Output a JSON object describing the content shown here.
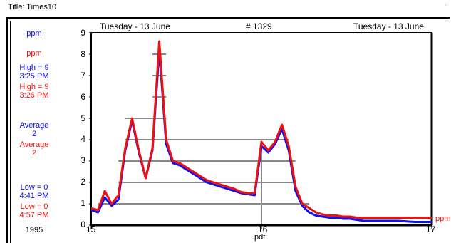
{
  "title": "Title:  Times10",
  "header": {
    "left_date": "Tuesday - 13 June",
    "record": "#  1329",
    "right_date": "Tuesday - 13 June"
  },
  "legend": {
    "series1_unit": "ppm",
    "series2_unit": "ppm",
    "high1": "High = 9",
    "high1_time": "3:25  PM",
    "high2": "High = 9",
    "high2_time": "3:26  PM",
    "avg1_label": "Average",
    "avg1_value": "2",
    "avg2_label": "Average",
    "avg2_value": "2",
    "low1": "Low = 0",
    "low1_time": "4:41  PM",
    "low2": "Low = 0",
    "low2_time": "4:57  PM",
    "year": "1995"
  },
  "right_unit": "ppm",
  "colors": {
    "series1": "#1111ee",
    "series2": "#ee1111",
    "grid": "#888888"
  },
  "chart_data": {
    "type": "line",
    "x_ticks": [
      "15",
      "16",
      "17"
    ],
    "xlabel": "pdt",
    "y_ticks": [
      "0",
      "1",
      "2",
      "3",
      "4",
      "5",
      "6",
      "7",
      "8",
      "9"
    ],
    "ylim": [
      0,
      9
    ],
    "xlim": [
      15,
      17
    ],
    "series": [
      {
        "color": "#1111ee",
        "x": [
          15.0,
          15.04,
          15.08,
          15.12,
          15.16,
          15.2,
          15.24,
          15.28,
          15.32,
          15.36,
          15.4,
          15.44,
          15.48,
          15.52,
          15.56,
          15.6,
          15.64,
          15.68,
          15.72,
          15.76,
          15.8,
          15.84,
          15.88,
          15.92,
          15.96,
          16.0,
          16.04,
          16.08,
          16.12,
          16.16,
          16.2,
          16.24,
          16.28,
          16.32,
          16.36,
          16.4,
          16.44,
          16.48,
          16.52,
          16.56,
          16.6,
          16.7,
          16.8,
          16.9,
          17.0
        ],
        "y": [
          0.7,
          0.6,
          1.3,
          0.9,
          1.2,
          3.5,
          4.9,
          3.4,
          2.2,
          3.5,
          8.2,
          3.8,
          2.9,
          2.8,
          2.6,
          2.4,
          2.2,
          2.0,
          1.9,
          1.8,
          1.7,
          1.6,
          1.5,
          1.45,
          1.4,
          3.7,
          3.4,
          3.8,
          4.5,
          3.5,
          1.6,
          0.9,
          0.6,
          0.45,
          0.4,
          0.35,
          0.35,
          0.3,
          0.3,
          0.25,
          0.2,
          0.2,
          0.2,
          0.15,
          0.15
        ]
      },
      {
        "color": "#ee1111",
        "x": [
          15.0,
          15.04,
          15.08,
          15.12,
          15.16,
          15.2,
          15.24,
          15.28,
          15.32,
          15.36,
          15.4,
          15.44,
          15.48,
          15.52,
          15.56,
          15.6,
          15.64,
          15.68,
          15.72,
          15.76,
          15.8,
          15.84,
          15.88,
          15.92,
          15.96,
          16.0,
          16.04,
          16.08,
          16.12,
          16.16,
          16.2,
          16.24,
          16.28,
          16.32,
          16.36,
          16.4,
          16.44,
          16.48,
          16.52,
          16.56,
          16.6,
          16.7,
          16.8,
          16.9,
          17.0
        ],
        "y": [
          0.8,
          0.7,
          1.6,
          1.0,
          1.4,
          3.6,
          5.0,
          3.5,
          2.2,
          3.6,
          8.6,
          4.0,
          3.0,
          2.9,
          2.7,
          2.5,
          2.3,
          2.1,
          2.0,
          1.9,
          1.8,
          1.7,
          1.55,
          1.5,
          1.5,
          3.9,
          3.5,
          3.9,
          4.7,
          3.7,
          1.8,
          1.0,
          0.8,
          0.6,
          0.5,
          0.45,
          0.45,
          0.4,
          0.4,
          0.35,
          0.35,
          0.35,
          0.35,
          0.35,
          0.35
        ]
      }
    ]
  }
}
